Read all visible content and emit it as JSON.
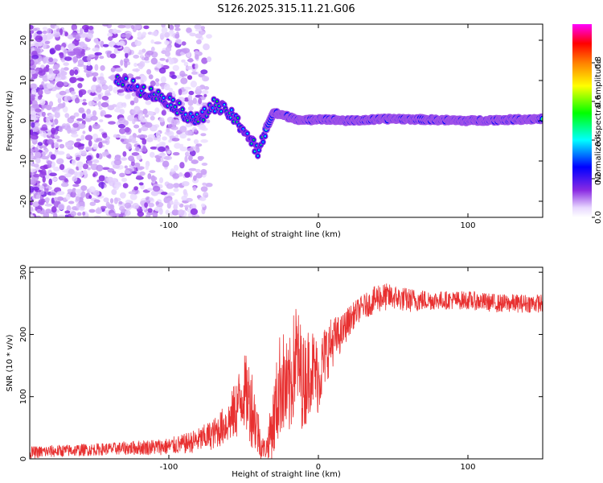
{
  "title": "S126.2025.315.11.21.G06",
  "chart_data": [
    {
      "type": "heatmap",
      "xlabel": "Height of straight line (km)",
      "ylabel": "Frequency (Hz)",
      "xlim": [
        -193,
        150
      ],
      "ylim": [
        -24,
        24
      ],
      "xticks": [
        "-100",
        "0",
        "100"
      ],
      "xtick_values": [
        -100,
        0,
        100
      ],
      "yticks": [
        "-20",
        "-10",
        "0",
        "10",
        "20"
      ],
      "ytick_values": [
        -20,
        -10,
        0,
        10,
        20
      ],
      "colorbar": {
        "label": "Normalized spectral amplitude",
        "range": [
          0,
          1
        ],
        "ticks": [
          "0.0",
          "0.2",
          "0.4",
          "0.6",
          "0.8"
        ],
        "tick_values": [
          0.0,
          0.2,
          0.4,
          0.6,
          0.8
        ]
      },
      "ridge": {
        "x": [
          -135,
          -120,
          -100,
          -90,
          -80,
          -70,
          -60,
          -50,
          -45,
          -40,
          -35,
          -30,
          -20,
          -10,
          0,
          20,
          50,
          100,
          150
        ],
        "frequency": [
          10,
          8,
          5,
          2,
          0,
          4,
          2,
          -2,
          -5,
          -8,
          -2,
          2,
          1,
          0,
          0.5,
          0,
          0.5,
          0,
          0.5
        ]
      }
    },
    {
      "type": "line",
      "xlabel": "Height of straight line (km)",
      "ylabel": "SNR (10 * v/v)",
      "xlim": [
        -193,
        150
      ],
      "ylim": [
        0,
        308
      ],
      "xticks": [
        "-100",
        "0",
        "100"
      ],
      "xtick_values": [
        -100,
        0,
        100
      ],
      "yticks": [
        "0",
        "100",
        "200",
        "300"
      ],
      "ytick_values": [
        0,
        100,
        200,
        300
      ],
      "series": [
        {
          "name": "SNR",
          "color": "#e83030",
          "x": [
            -193,
            -180,
            -160,
            -140,
            -120,
            -100,
            -90,
            -80,
            -70,
            -60,
            -55,
            -50,
            -45,
            -40,
            -38,
            -35,
            -30,
            -25,
            -20,
            -15,
            -10,
            -5,
            0,
            5,
            10,
            15,
            20,
            25,
            30,
            35,
            40,
            50,
            60,
            80,
            100,
            120,
            150
          ],
          "values": [
            10,
            12,
            14,
            16,
            18,
            20,
            24,
            30,
            40,
            60,
            80,
            110,
            90,
            40,
            20,
            15,
            60,
            130,
            100,
            170,
            120,
            150,
            130,
            170,
            190,
            200,
            220,
            235,
            245,
            250,
            260,
            260,
            255,
            255,
            255,
            250,
            250
          ],
          "spread": [
            10,
            10,
            10,
            10,
            12,
            14,
            16,
            20,
            25,
            35,
            50,
            60,
            70,
            40,
            20,
            15,
            60,
            90,
            80,
            90,
            80,
            70,
            60,
            50,
            40,
            30,
            25,
            20,
            20,
            20,
            25,
            20,
            20,
            15,
            15,
            15,
            15
          ]
        }
      ]
    }
  ]
}
